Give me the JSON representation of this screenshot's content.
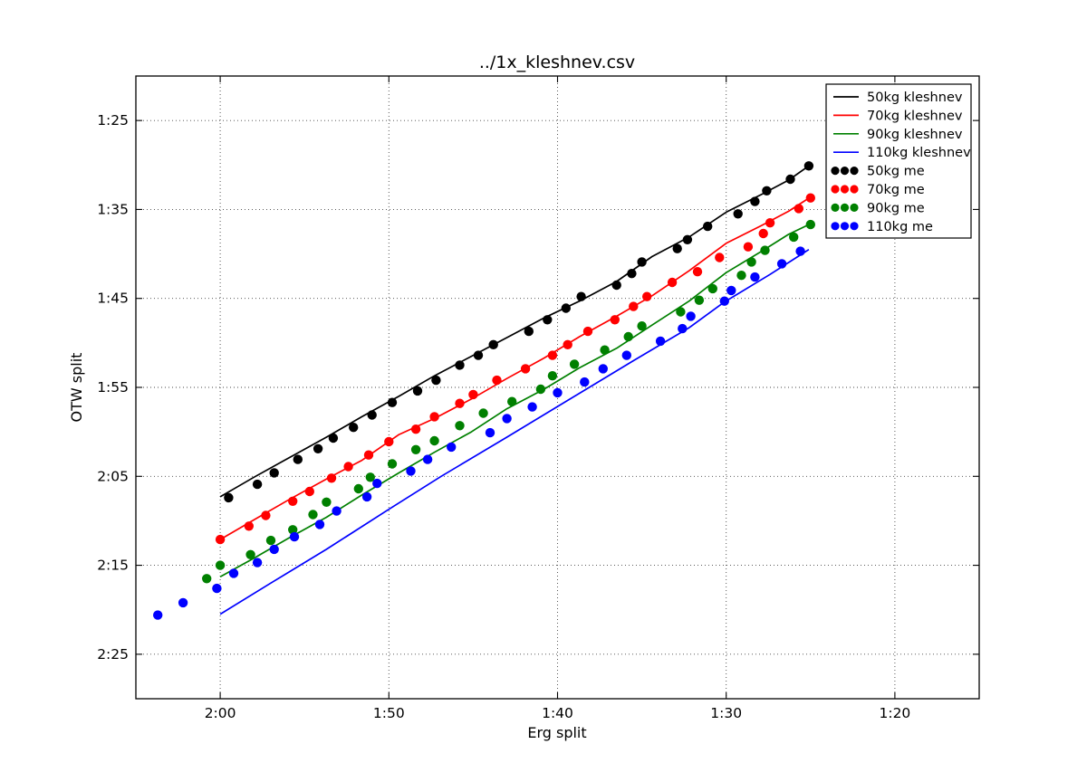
{
  "title": "../1x_kleshnev.csv",
  "x_axis": {
    "label": "Erg split",
    "unit": "time per 500m (seconds)",
    "min_sec": 125,
    "max_sec": 75,
    "inverted": true,
    "ticks": [
      {
        "label": "2:00",
        "sec": 120
      },
      {
        "label": "1:50",
        "sec": 110
      },
      {
        "label": "1:40",
        "sec": 100
      },
      {
        "label": "1:30",
        "sec": 90
      },
      {
        "label": "1:20",
        "sec": 80
      }
    ]
  },
  "y_axis": {
    "label": "OTW split",
    "unit": "time per 500m (seconds)",
    "min_sec": 80,
    "max_sec": 150,
    "inverted": true,
    "ticks": [
      {
        "label": "1:25",
        "sec": 85
      },
      {
        "label": "1:35",
        "sec": 95
      },
      {
        "label": "1:45",
        "sec": 105
      },
      {
        "label": "1:55",
        "sec": 115
      },
      {
        "label": "2:05",
        "sec": 125
      },
      {
        "label": "2:15",
        "sec": 135
      },
      {
        "label": "2:25",
        "sec": 145
      }
    ]
  },
  "legend": {
    "items": [
      {
        "label": "50kg kleshnev",
        "color": "#000000",
        "marker": "line"
      },
      {
        "label": "70kg kleshnev",
        "color": "#ff0000",
        "marker": "line"
      },
      {
        "label": "90kg kleshnev",
        "color": "#008000",
        "marker": "line"
      },
      {
        "label": "110kg kleshnev",
        "color": "#0000ff",
        "marker": "line"
      },
      {
        "label": "50kg me",
        "color": "#000000",
        "marker": "dots"
      },
      {
        "label": "70kg me",
        "color": "#ff0000",
        "marker": "dots"
      },
      {
        "label": "90kg me",
        "color": "#008000",
        "marker": "dots"
      },
      {
        "label": "110kg me",
        "color": "#0000ff",
        "marker": "dots"
      }
    ]
  },
  "style": {
    "grid_color": "#444444",
    "spine_color": "#000000",
    "background": "#ffffff",
    "dot_radius": 5.2,
    "line_width": 1.7
  },
  "chart_data": {
    "type": "line",
    "subtype": "line+scatter",
    "x_unit_note": "erg split seconds (axis reversed, faster to the right)",
    "y_unit_note": "OTW split seconds (axis reversed, faster at top)",
    "series": [
      {
        "name": "50kg kleshnev",
        "type": "line",
        "color": "#000000",
        "points": [
          [
            120.0,
            127.3
          ],
          [
            118.0,
            125.1
          ],
          [
            115.9,
            122.9
          ],
          [
            113.7,
            120.6
          ],
          [
            111.6,
            118.3
          ],
          [
            109.4,
            116.0
          ],
          [
            107.3,
            113.7
          ],
          [
            105.1,
            111.5
          ],
          [
            103.0,
            109.4
          ],
          [
            100.8,
            107.2
          ],
          [
            98.7,
            105.3
          ],
          [
            96.5,
            103.1
          ],
          [
            94.4,
            100.3
          ],
          [
            92.2,
            98.1
          ],
          [
            90.0,
            95.3
          ],
          [
            87.9,
            93.3
          ],
          [
            86.3,
            91.7
          ],
          [
            85.1,
            90.1
          ]
        ]
      },
      {
        "name": "70kg kleshnev",
        "type": "line",
        "color": "#ff0000",
        "points": [
          [
            120.0,
            132.1
          ],
          [
            118.0,
            129.9
          ],
          [
            115.9,
            127.6
          ],
          [
            113.7,
            125.3
          ],
          [
            111.6,
            123.2
          ],
          [
            109.4,
            120.3
          ],
          [
            107.3,
            118.5
          ],
          [
            105.1,
            116.3
          ],
          [
            103.0,
            114.0
          ],
          [
            100.8,
            111.7
          ],
          [
            98.7,
            109.3
          ],
          [
            96.5,
            107.0
          ],
          [
            94.4,
            104.7
          ],
          [
            92.2,
            101.9
          ],
          [
            90.0,
            98.8
          ],
          [
            87.9,
            96.8
          ],
          [
            86.3,
            95.2
          ],
          [
            85.0,
            93.6
          ]
        ]
      },
      {
        "name": "90kg kleshnev",
        "type": "line",
        "color": "#008000",
        "points": [
          [
            120.0,
            136.3
          ],
          [
            118.0,
            134.2
          ],
          [
            115.9,
            131.9
          ],
          [
            113.7,
            129.6
          ],
          [
            111.6,
            127.1
          ],
          [
            109.4,
            124.6
          ],
          [
            107.3,
            122.3
          ],
          [
            105.1,
            120.0
          ],
          [
            103.0,
            117.4
          ],
          [
            100.8,
            115.2
          ],
          [
            98.7,
            112.8
          ],
          [
            96.5,
            110.6
          ],
          [
            94.4,
            108.0
          ],
          [
            92.2,
            105.3
          ],
          [
            90.0,
            102.1
          ],
          [
            87.9,
            99.7
          ],
          [
            86.3,
            97.8
          ],
          [
            85.0,
            96.6
          ]
        ]
      },
      {
        "name": "110kg kleshnev",
        "type": "line",
        "color": "#0000ff",
        "points": [
          [
            120.0,
            140.5
          ],
          [
            117.0,
            137.0
          ],
          [
            113.7,
            133.2
          ],
          [
            110.0,
            128.7
          ],
          [
            106.9,
            125.0
          ],
          [
            103.0,
            120.6
          ],
          [
            98.3,
            115.2
          ],
          [
            95.5,
            112.0
          ],
          [
            92.2,
            108.3
          ],
          [
            90.1,
            105.4
          ],
          [
            87.4,
            102.3
          ],
          [
            85.1,
            99.5
          ]
        ]
      },
      {
        "name": "50kg me",
        "type": "scatter",
        "color": "#000000",
        "points": [
          [
            119.5,
            127.4
          ],
          [
            117.8,
            125.9
          ],
          [
            116.8,
            124.6
          ],
          [
            115.4,
            123.1
          ],
          [
            114.2,
            121.9
          ],
          [
            113.3,
            120.7
          ],
          [
            112.1,
            119.5
          ],
          [
            111.0,
            118.1
          ],
          [
            109.8,
            116.7
          ],
          [
            108.3,
            115.4
          ],
          [
            107.2,
            114.2
          ],
          [
            105.8,
            112.5
          ],
          [
            104.7,
            111.4
          ],
          [
            103.8,
            110.2
          ],
          [
            101.7,
            108.7
          ],
          [
            100.6,
            107.4
          ],
          [
            99.5,
            106.1
          ],
          [
            98.6,
            104.8
          ],
          [
            96.5,
            103.5
          ],
          [
            95.6,
            102.2
          ],
          [
            95.0,
            100.9
          ],
          [
            92.9,
            99.4
          ],
          [
            92.3,
            98.4
          ],
          [
            91.1,
            96.9
          ],
          [
            89.3,
            95.5
          ],
          [
            88.3,
            94.1
          ],
          [
            87.6,
            92.9
          ],
          [
            86.2,
            91.6
          ],
          [
            85.1,
            90.1
          ]
        ]
      },
      {
        "name": "70kg me",
        "type": "scatter",
        "color": "#ff0000",
        "points": [
          [
            120.0,
            132.1
          ],
          [
            118.3,
            130.6
          ],
          [
            117.3,
            129.4
          ],
          [
            115.7,
            127.8
          ],
          [
            114.7,
            126.7
          ],
          [
            113.4,
            125.2
          ],
          [
            112.4,
            123.9
          ],
          [
            111.2,
            122.6
          ],
          [
            110.0,
            121.1
          ],
          [
            108.4,
            119.7
          ],
          [
            107.3,
            118.3
          ],
          [
            105.8,
            116.8
          ],
          [
            105.0,
            115.8
          ],
          [
            103.6,
            114.2
          ],
          [
            101.9,
            112.9
          ],
          [
            100.3,
            111.4
          ],
          [
            99.4,
            110.2
          ],
          [
            98.2,
            108.7
          ],
          [
            96.6,
            107.4
          ],
          [
            95.5,
            105.9
          ],
          [
            94.7,
            104.8
          ],
          [
            93.2,
            103.2
          ],
          [
            91.7,
            102.0
          ],
          [
            90.4,
            100.4
          ],
          [
            88.7,
            99.2
          ],
          [
            87.8,
            97.7
          ],
          [
            87.4,
            96.5
          ],
          [
            85.7,
            94.9
          ],
          [
            85.0,
            93.7
          ]
        ]
      },
      {
        "name": "90kg me",
        "type": "scatter",
        "color": "#008000",
        "points": [
          [
            120.8,
            136.5
          ],
          [
            120.0,
            135.0
          ],
          [
            118.2,
            133.8
          ],
          [
            117.0,
            132.2
          ],
          [
            115.7,
            131.0
          ],
          [
            114.5,
            129.3
          ],
          [
            113.7,
            127.9
          ],
          [
            111.8,
            126.4
          ],
          [
            111.1,
            125.1
          ],
          [
            109.8,
            123.6
          ],
          [
            108.4,
            122.0
          ],
          [
            107.3,
            121.0
          ],
          [
            105.8,
            119.3
          ],
          [
            104.4,
            117.9
          ],
          [
            102.7,
            116.6
          ],
          [
            101.0,
            115.2
          ],
          [
            100.3,
            113.7
          ],
          [
            99.0,
            112.4
          ],
          [
            97.2,
            110.8
          ],
          [
            95.8,
            109.3
          ],
          [
            95.0,
            108.1
          ],
          [
            92.7,
            106.5
          ],
          [
            91.6,
            105.2
          ],
          [
            90.8,
            103.9
          ],
          [
            89.1,
            102.4
          ],
          [
            88.5,
            100.9
          ],
          [
            87.7,
            99.6
          ],
          [
            86.0,
            98.1
          ],
          [
            85.0,
            96.7
          ]
        ]
      },
      {
        "name": "110kg me",
        "type": "scatter",
        "color": "#0000ff",
        "points": [
          [
            123.7,
            140.6
          ],
          [
            122.2,
            139.2
          ],
          [
            120.2,
            137.6
          ],
          [
            119.2,
            135.9
          ],
          [
            117.8,
            134.7
          ],
          [
            116.8,
            133.2
          ],
          [
            115.6,
            131.8
          ],
          [
            114.1,
            130.4
          ],
          [
            113.1,
            128.9
          ],
          [
            111.3,
            127.3
          ],
          [
            110.7,
            125.8
          ],
          [
            108.7,
            124.4
          ],
          [
            107.7,
            123.1
          ],
          [
            106.3,
            121.7
          ],
          [
            104.0,
            120.1
          ],
          [
            103.0,
            118.5
          ],
          [
            101.5,
            117.2
          ],
          [
            100.0,
            115.6
          ],
          [
            98.4,
            114.4
          ],
          [
            97.3,
            112.9
          ],
          [
            95.9,
            111.4
          ],
          [
            93.9,
            109.8
          ],
          [
            92.6,
            108.4
          ],
          [
            92.1,
            107.0
          ],
          [
            90.1,
            105.3
          ],
          [
            89.7,
            104.1
          ],
          [
            88.3,
            102.6
          ],
          [
            86.7,
            101.1
          ],
          [
            85.6,
            99.7
          ]
        ]
      }
    ]
  }
}
